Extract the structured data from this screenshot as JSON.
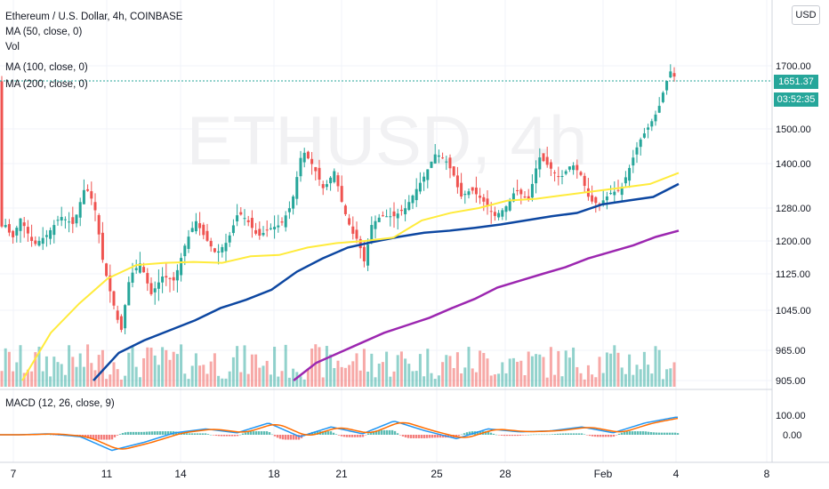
{
  "legend": {
    "title": "Ethereum / U.S. Dollar, 4h, COINBASE",
    "ma50": "MA (50, close, 0)",
    "vol": "Vol",
    "ma100": "MA (100, close, 0)",
    "ma200": "MA (200, close, 0)",
    "macd": "MACD (12, 26, close, 9)"
  },
  "currency_button": "USD",
  "watermark": "ETHUSD, 4h",
  "price_tag": "1651.37",
  "countdown_tag": "03:52:35",
  "colors": {
    "up": "#26a69a",
    "down": "#ef5350",
    "ma50": "#ffeb3b",
    "ma100": "#0d47a1",
    "ma200": "#9c27b0",
    "macd_line": "#2196f3",
    "signal_line": "#ff6d00"
  },
  "chart_data": {
    "type": "line",
    "subtype": "candlestick",
    "symbol": "Ethereum / U.S. Dollar",
    "interval": "4h",
    "exchange": "COINBASE",
    "price_axis_ticks": [
      "1700.00",
      "1500.00",
      "1400.00",
      "1280.00",
      "1200.00",
      "1125.00",
      "1045.00",
      "965.00",
      "905.00"
    ],
    "date_axis_ticks": [
      "7",
      "11",
      "14",
      "18",
      "21",
      "25",
      "28",
      "Feb",
      "4",
      "8"
    ],
    "close_price": 1651.37,
    "series": [
      {
        "name": "MA (50, close, 0)",
        "values": [
          905,
          1000,
          1060,
          1115,
          1145,
          1150,
          1152,
          1150,
          1165,
          1168,
          1185,
          1195,
          1200,
          1208,
          1250,
          1268,
          1280,
          1300,
          1305,
          1315,
          1325,
          1335,
          1345,
          1375
        ]
      },
      {
        "name": "MA (100, close, 0)",
        "values": [
          905,
          960,
          985,
          1005,
          1025,
          1050,
          1068,
          1090,
          1130,
          1160,
          1185,
          1198,
          1210,
          1220,
          1225,
          1232,
          1240,
          1250,
          1260,
          1268,
          1290,
          1300,
          1310,
          1345
        ]
      },
      {
        "name": "MA (200, close, 0)",
        "values": [
          905,
          940,
          960,
          980,
          1000,
          1015,
          1030,
          1050,
          1070,
          1095,
          1110,
          1125,
          1140,
          1160,
          1175,
          1190,
          1210,
          1225
        ]
      },
      {
        "name": "MACD (12, 26, close, 9)",
        "values": [
          0,
          5,
          -10,
          -80,
          -40,
          10,
          30,
          10,
          60,
          -10,
          40,
          5,
          70,
          20,
          -20,
          30,
          15,
          20,
          40,
          10,
          60,
          90
        ]
      }
    ],
    "volume": "shown",
    "grid": true
  }
}
